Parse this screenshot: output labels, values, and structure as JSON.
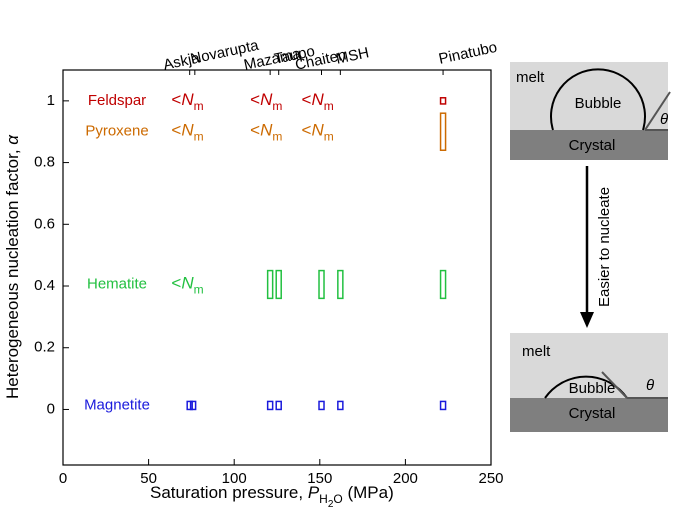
{
  "chart_data": {
    "type": "range",
    "xlabel": {
      "text": "Saturation pressure, ",
      "var": "P",
      "sub": "H",
      "sub_num": "2",
      "sub_end": "O",
      "unit": " (MPa)"
    },
    "ylabel": {
      "text": "Heterogeneous nucleation factor, ",
      "var": "α"
    },
    "xlim": [
      0,
      250
    ],
    "xticks": [
      0,
      50,
      100,
      150,
      200,
      250
    ],
    "ylim": [
      -0.18,
      1.1
    ],
    "yticks": [
      0,
      0.2,
      0.4,
      0.6,
      0.8,
      1
    ],
    "volcanoes": {
      "names": [
        "Askja",
        "Novarupta",
        "Mazama",
        "Taupo",
        "Chaiten",
        "MSH",
        "Pinatubo"
      ],
      "x": [
        74,
        77,
        121,
        126,
        151,
        162,
        222
      ]
    },
    "below_label": {
      "symbol": "<",
      "letter": "N",
      "sub": "m"
    },
    "series": [
      {
        "name": "Feldspar",
        "color": "#c00000",
        "x": [
          222
        ],
        "low": [
          0.99
        ],
        "high": [
          1.01
        ],
        "nm_x": [
          75,
          121,
          151
        ]
      },
      {
        "name": "Pyroxene",
        "color": "#cc6a00",
        "x": [
          222
        ],
        "low": [
          0.84
        ],
        "high": [
          0.96
        ],
        "nm_x": [
          75,
          121,
          151
        ]
      },
      {
        "name": "Hematite",
        "color": "#22c040",
        "x": [
          121,
          126,
          151,
          162,
          222
        ],
        "low": [
          0.36,
          0.36,
          0.36,
          0.36,
          0.36
        ],
        "high": [
          0.45,
          0.45,
          0.45,
          0.45,
          0.45
        ],
        "nm_x": [
          75
        ]
      },
      {
        "name": "Magnetite",
        "color": "#1a1adc",
        "x": [
          74,
          76,
          121,
          126,
          151,
          162,
          222
        ],
        "low": [
          0,
          0,
          0,
          0,
          0,
          0,
          0
        ],
        "high": [
          0.026,
          0.026,
          0.026,
          0.026,
          0.026,
          0.026,
          0.026
        ],
        "nm_x": []
      }
    ]
  },
  "diagram": {
    "top": {
      "medium": "melt",
      "bubble": "Bubble",
      "crystal": "Crystal",
      "angle": "θ"
    },
    "arrow": "Easier to nucleate",
    "bottom": {
      "medium": "melt",
      "bubble": "Bubble",
      "crystal": "Crystal",
      "angle": "θ"
    }
  }
}
